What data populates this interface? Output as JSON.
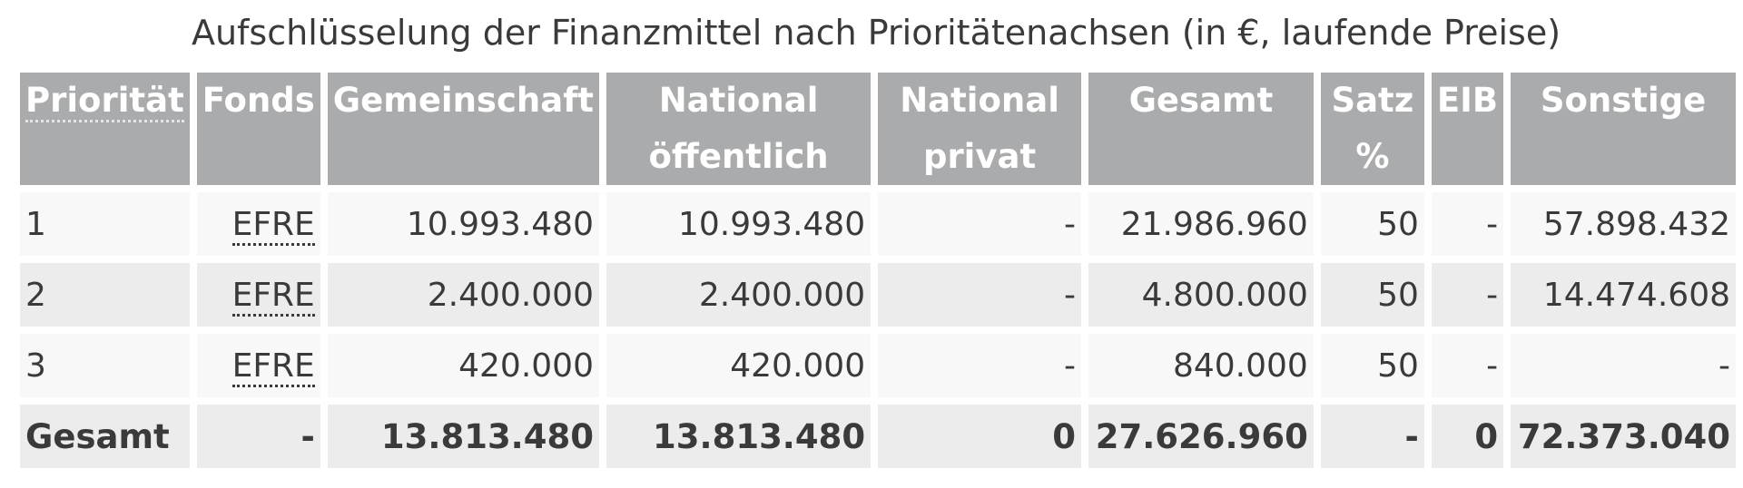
{
  "title": "Aufschlüsselung der Finanzmittel nach Prioritätenachsen (in €, laufende Preise)",
  "headers": {
    "prioritaet": "Priorität",
    "fonds": "Fonds",
    "gemeinschaft": "Gemeinschaft",
    "national_oeffentlich_1": "National",
    "national_oeffentlich_2": "öffentlich",
    "national_privat_1": "National",
    "national_privat_2": "privat",
    "gesamt": "Gesamt",
    "satz_1": "Satz",
    "satz_2": "%",
    "eib": "EIB",
    "sonstige": "Sonstige"
  },
  "rows": [
    {
      "prioritaet": "1",
      "fonds": "EFRE",
      "gemeinschaft": "10.993.480",
      "national_oeffentlich": "10.993.480",
      "national_privat": "-",
      "gesamt": "21.986.960",
      "satz": "50",
      "eib": "-",
      "sonstige": "57.898.432"
    },
    {
      "prioritaet": "2",
      "fonds": "EFRE",
      "gemeinschaft": "2.400.000",
      "national_oeffentlich": "2.400.000",
      "national_privat": "-",
      "gesamt": "4.800.000",
      "satz": "50",
      "eib": "-",
      "sonstige": "14.474.608"
    },
    {
      "prioritaet": "3",
      "fonds": "EFRE",
      "gemeinschaft": "420.000",
      "national_oeffentlich": "420.000",
      "national_privat": "-",
      "gesamt": "840.000",
      "satz": "50",
      "eib": "-",
      "sonstige": "-"
    }
  ],
  "total": {
    "prioritaet": "Gesamt",
    "fonds": "-",
    "gemeinschaft": "13.813.480",
    "national_oeffentlich": "13.813.480",
    "national_privat": "0",
    "gesamt": "27.626.960",
    "satz": "-",
    "eib": "0",
    "sonstige": "72.373.040"
  },
  "colors": {
    "header_bg": "#a9abad",
    "header_text": "#ffffff",
    "row_light": "#f8f8f8",
    "row_dark": "#ececec",
    "text": "#3a3a3a"
  }
}
